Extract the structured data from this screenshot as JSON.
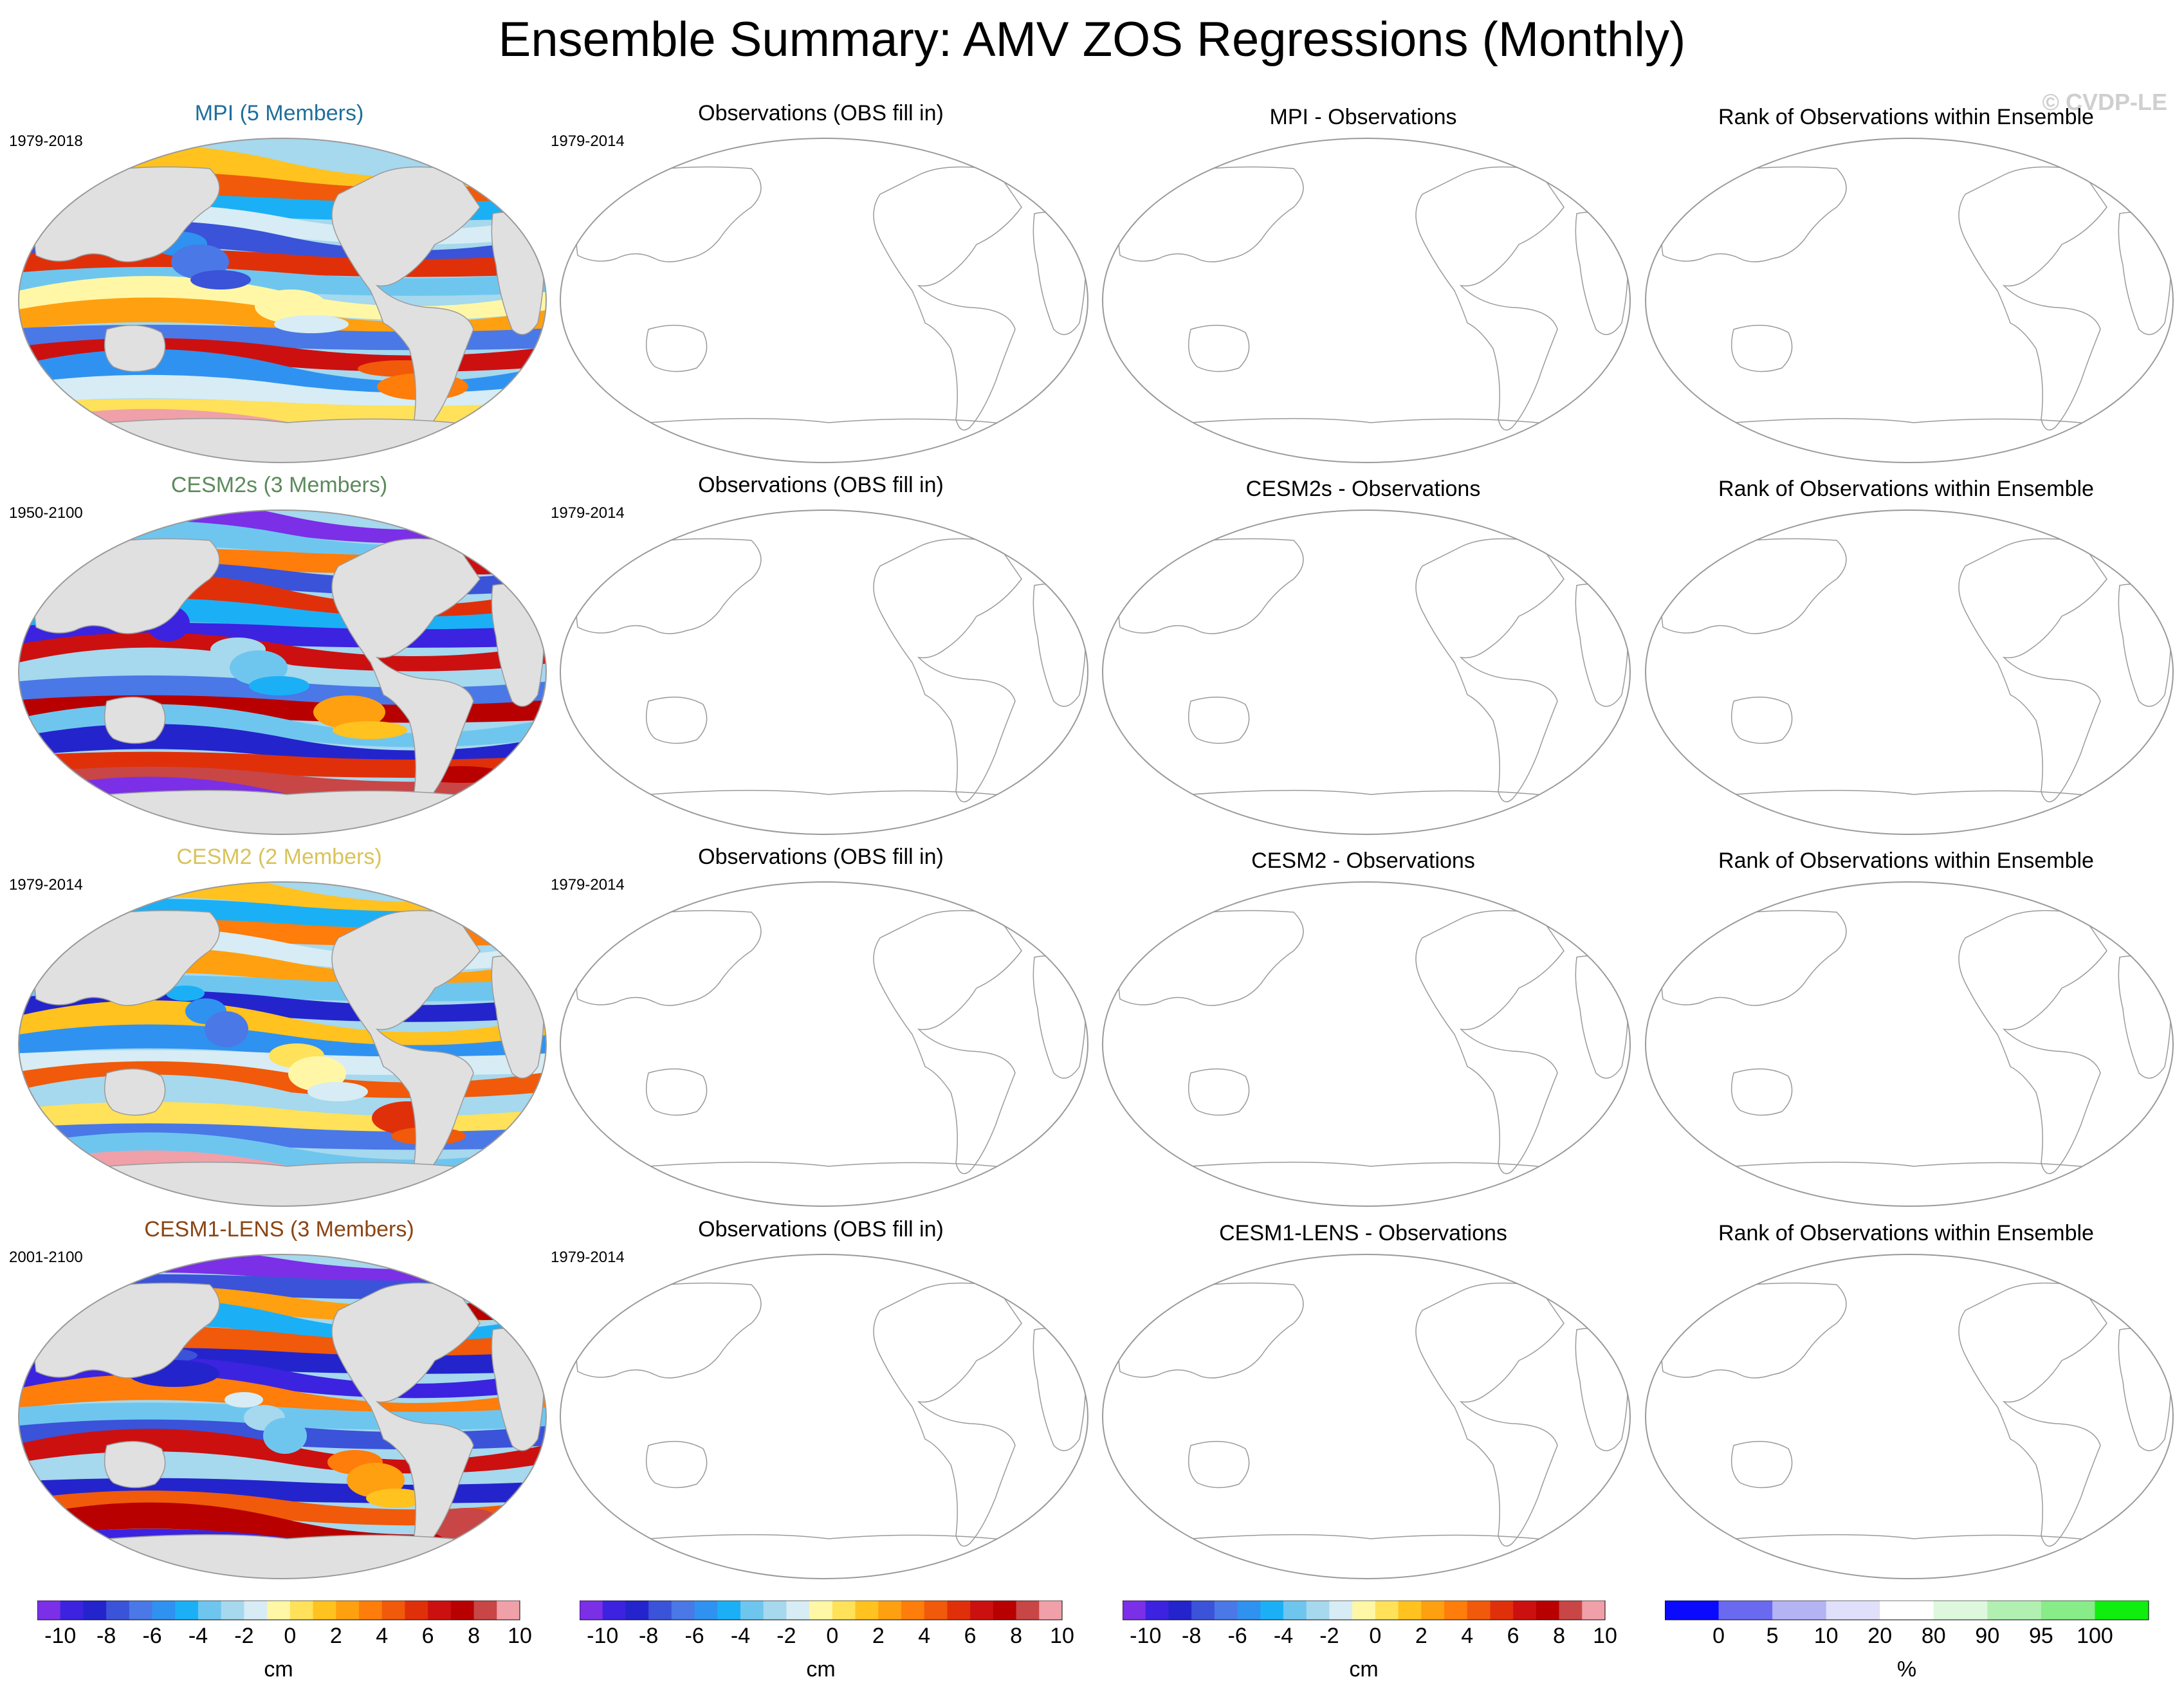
{
  "title": "Ensemble Summary: AMV ZOS Regressions (Monthly)",
  "copyright": "© CVDP-LE",
  "columns": [
    "ensemble",
    "observations",
    "difference",
    "rank"
  ],
  "rows": [
    {
      "model": "MPI",
      "model_title": "MPI (5 Members)",
      "title_color": "#1f6f9b",
      "period": "1979-2018",
      "obs_title": "Observations (OBS fill in)",
      "obs_period": "1979-2014",
      "diff_title": "MPI - Observations",
      "rank_title": "Rank of Observations within Ensemble"
    },
    {
      "model": "CESM2s",
      "model_title": "CESM2s (3 Members)",
      "title_color": "#5c8a5c",
      "period": "1950-2100",
      "obs_title": "Observations (OBS fill in)",
      "obs_period": "1979-2014",
      "diff_title": "CESM2s - Observations",
      "rank_title": "Rank of Observations within Ensemble"
    },
    {
      "model": "CESM2",
      "model_title": "CESM2 (2 Members)",
      "title_color": "#d9c35a",
      "period": "1979-2014",
      "obs_title": "Observations (OBS fill in)",
      "obs_period": "1979-2014",
      "diff_title": "CESM2 - Observations",
      "rank_title": "Rank of Observations within Ensemble"
    },
    {
      "model": "CESM1-LENS",
      "model_title": "CESM1-LENS (3 Members)",
      "title_color": "#8b4513",
      "period": "2001-2100",
      "obs_title": "Observations (OBS fill in)",
      "obs_period": "1979-2014",
      "diff_title": "CESM1-LENS - Observations",
      "rank_title": "Rank of Observations within Ensemble"
    }
  ],
  "colorbars": [
    {
      "name": "zos-colorbar-1",
      "unit": "cm",
      "tick_labels": [
        "-10",
        "-8",
        "-6",
        "-4",
        "-2",
        "0",
        "2",
        "4",
        "6",
        "8",
        "10"
      ],
      "colors": [
        "#7b2fe6",
        "#3b23e0",
        "#2424cc",
        "#3a53d9",
        "#4a78e6",
        "#2f92f0",
        "#1bb0f5",
        "#6ec6ef",
        "#a6d8ee",
        "#d7ecf4",
        "#fff7a6",
        "#ffe15a",
        "#ffc21f",
        "#ffa010",
        "#ff7d0a",
        "#f05a0a",
        "#e0300a",
        "#cc1010",
        "#b80000",
        "#c84646",
        "#f0a0a8"
      ]
    },
    {
      "name": "zos-colorbar-2",
      "unit": "cm",
      "tick_labels": [
        "-10",
        "-8",
        "-6",
        "-4",
        "-2",
        "0",
        "2",
        "4",
        "6",
        "8",
        "10"
      ],
      "colors": [
        "#7b2fe6",
        "#3b23e0",
        "#2424cc",
        "#3a53d9",
        "#4a78e6",
        "#2f92f0",
        "#1bb0f5",
        "#6ec6ef",
        "#a6d8ee",
        "#d7ecf4",
        "#fff7a6",
        "#ffe15a",
        "#ffc21f",
        "#ffa010",
        "#ff7d0a",
        "#f05a0a",
        "#e0300a",
        "#cc1010",
        "#b80000",
        "#c84646",
        "#f0a0a8"
      ]
    },
    {
      "name": "zos-colorbar-3",
      "unit": "cm",
      "tick_labels": [
        "-10",
        "-8",
        "-6",
        "-4",
        "-2",
        "0",
        "2",
        "4",
        "6",
        "8",
        "10"
      ],
      "colors": [
        "#7b2fe6",
        "#3b23e0",
        "#2424cc",
        "#3a53d9",
        "#4a78e6",
        "#2f92f0",
        "#1bb0f5",
        "#6ec6ef",
        "#a6d8ee",
        "#d7ecf4",
        "#fff7a6",
        "#ffe15a",
        "#ffc21f",
        "#ffa010",
        "#ff7d0a",
        "#f05a0a",
        "#e0300a",
        "#cc1010",
        "#b80000",
        "#c84646",
        "#f0a0a8"
      ]
    },
    {
      "name": "rank-colorbar",
      "unit": "%",
      "tick_labels": [
        "0",
        "5",
        "10",
        "20",
        "80",
        "90",
        "95",
        "100"
      ],
      "colors": [
        "#0a0aff",
        "#6a6af0",
        "#b4b4f4",
        "#e0e0fa",
        "#ffffff",
        "#ddf8dd",
        "#b2f0b2",
        "#88ec88",
        "#10ee10"
      ]
    }
  ],
  "colors": {
    "land": "#e0e0e0",
    "coast": "#9a9a9a",
    "map_border": "#9a9a9a"
  }
}
